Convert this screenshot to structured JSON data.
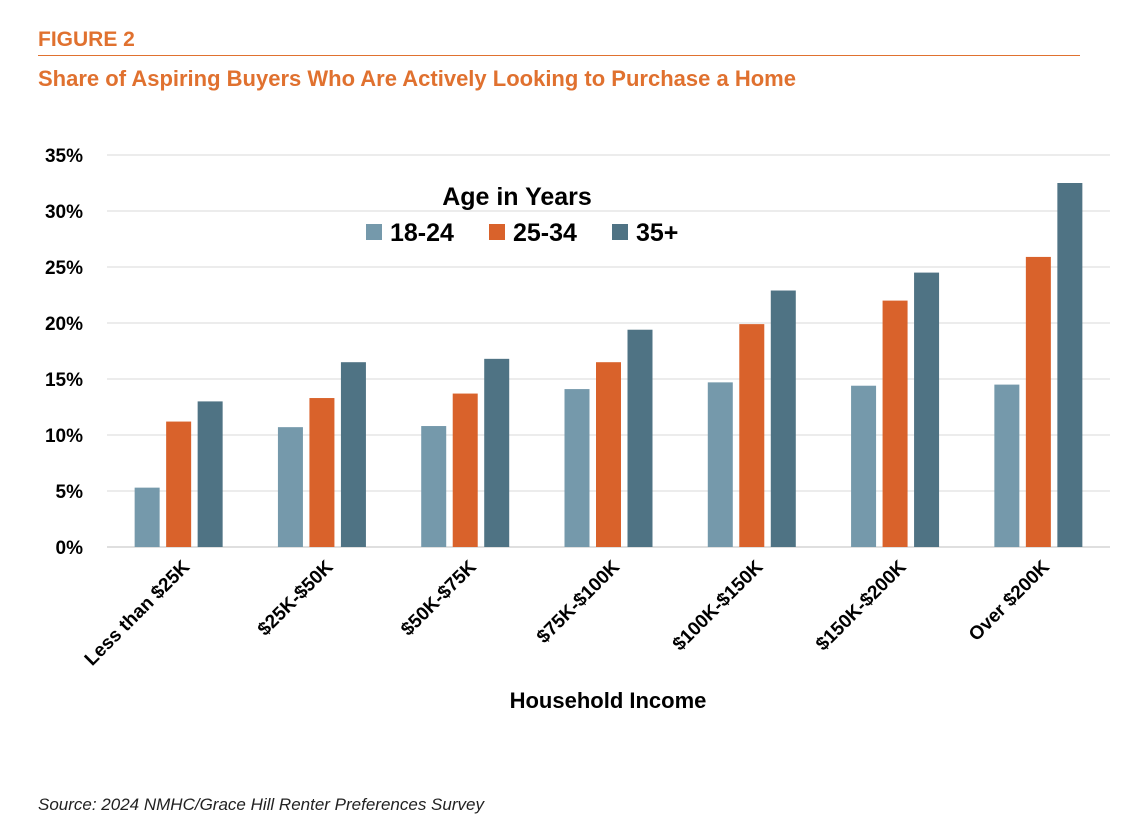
{
  "header": {
    "figure_label": "FIGURE 2",
    "title": "Share of Aspiring Buyers Who Are Actively Looking to Purchase a Home"
  },
  "source": "Source: 2024 NMHC/Grace Hill Renter Preferences Survey",
  "chart_data": {
    "type": "bar",
    "xlabel": "Household Income",
    "ylabel": "",
    "ylim": [
      0,
      35
    ],
    "yticks": [
      "0%",
      "5%",
      "10%",
      "15%",
      "20%",
      "25%",
      "30%",
      "35%"
    ],
    "grid": true,
    "legend_title": "Age in Years",
    "legend_position": "top-center",
    "categories": [
      "Less than $25K",
      "$25K-$50K",
      "$50K-$75K",
      "$75K-$100K",
      "$100K-$150K",
      "$150K-$200K",
      "Over $200K"
    ],
    "series": [
      {
        "name": "18-24",
        "color": "#7599ab",
        "values": [
          5.3,
          10.7,
          10.8,
          14.1,
          14.7,
          14.4,
          14.5
        ]
      },
      {
        "name": "25-34",
        "color": "#d9622b",
        "values": [
          11.2,
          13.3,
          13.7,
          16.5,
          19.9,
          22.0,
          25.9
        ]
      },
      {
        "name": "35+",
        "color": "#4f7384",
        "values": [
          13.0,
          16.5,
          16.8,
          19.4,
          22.9,
          24.5,
          32.5
        ]
      }
    ]
  }
}
